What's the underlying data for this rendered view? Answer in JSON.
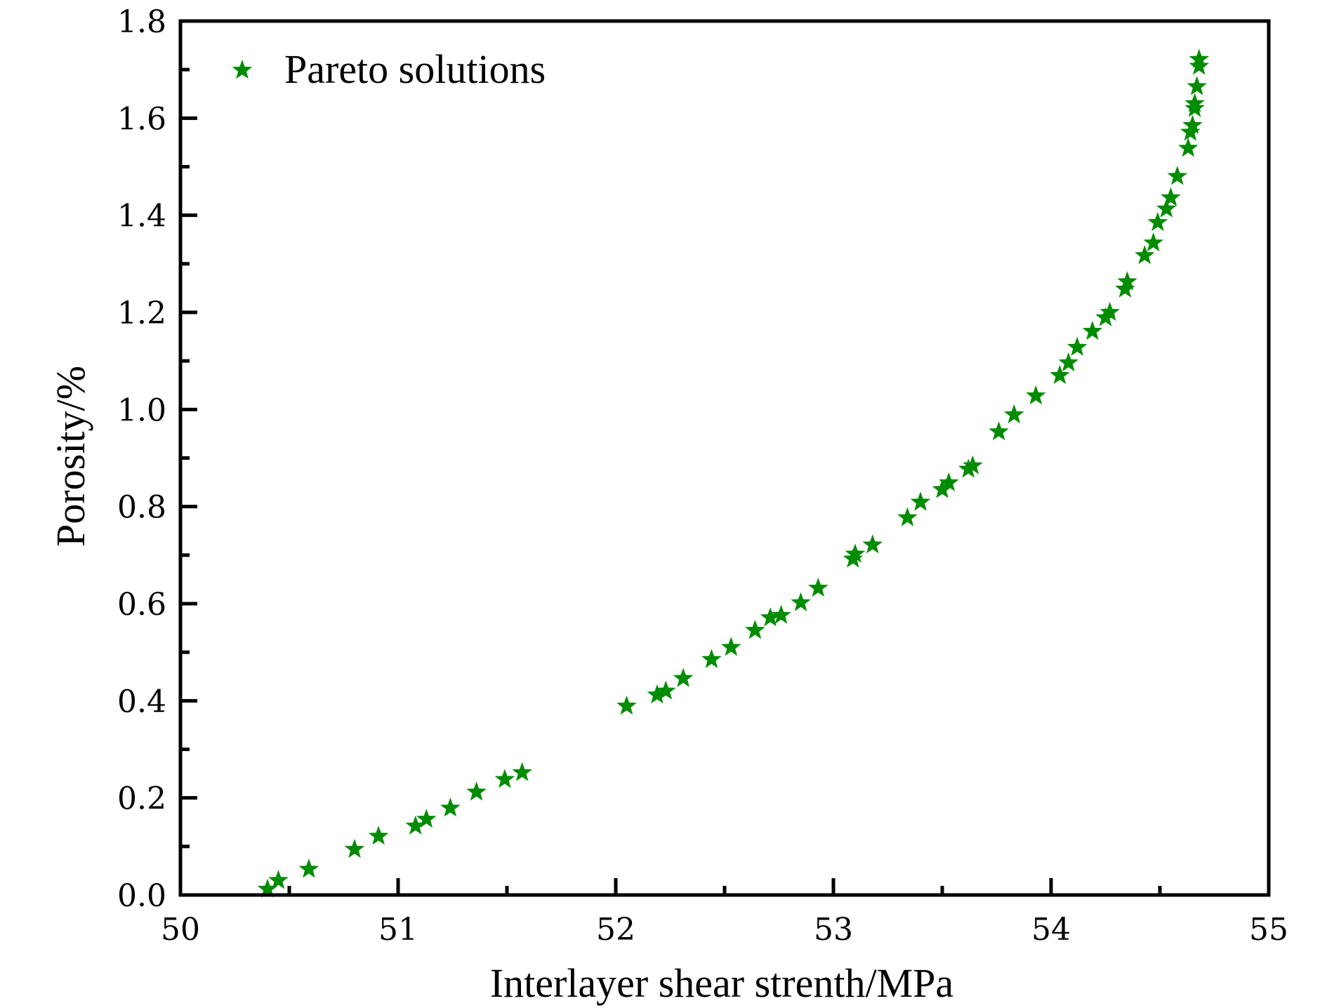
{
  "chart_data": {
    "type": "scatter",
    "title": "",
    "xlabel": "Interlayer shear strenth/MPa",
    "ylabel": "Porosity/%",
    "xlim": [
      50,
      55
    ],
    "ylim": [
      0,
      1.8
    ],
    "x_ticks": [
      "50",
      "51",
      "52",
      "53",
      "54",
      "55"
    ],
    "x_tick_values": [
      50,
      51,
      52,
      53,
      54,
      55
    ],
    "y_ticks": [
      "0.0",
      "0.2",
      "0.4",
      "0.6",
      "0.8",
      "1.0",
      "1.2",
      "1.4",
      "1.6",
      "1.8"
    ],
    "y_tick_values": [
      0,
      0.2,
      0.4,
      0.6,
      0.8,
      1.0,
      1.2,
      1.4,
      1.6,
      1.8
    ],
    "grid": false,
    "legend_position": "top-left",
    "series": [
      {
        "name": "Pareto solutions",
        "marker": "star",
        "color": "#008c00",
        "x": [
          50.4,
          50.45,
          50.59,
          50.8,
          50.91,
          51.08,
          51.13,
          51.24,
          51.36,
          51.49,
          51.57,
          52.05,
          52.19,
          52.23,
          52.31,
          52.44,
          52.53,
          52.64,
          52.71,
          52.76,
          52.85,
          52.93,
          53.09,
          53.1,
          53.18,
          53.34,
          53.4,
          53.5,
          53.53,
          53.62,
          53.64,
          53.76,
          53.83,
          53.93,
          54.04,
          54.08,
          54.12,
          54.19,
          54.25,
          54.27,
          54.34,
          54.35,
          54.43,
          54.47,
          54.49,
          54.53,
          54.55,
          54.58,
          54.63,
          54.64,
          54.65,
          54.66,
          54.66,
          54.67,
          54.68,
          54.68
        ],
        "y": [
          0.012,
          0.03,
          0.053,
          0.094,
          0.121,
          0.142,
          0.156,
          0.179,
          0.212,
          0.238,
          0.252,
          0.389,
          0.412,
          0.42,
          0.446,
          0.485,
          0.51,
          0.545,
          0.571,
          0.576,
          0.602,
          0.632,
          0.692,
          0.702,
          0.721,
          0.777,
          0.809,
          0.835,
          0.849,
          0.877,
          0.884,
          0.954,
          0.989,
          1.028,
          1.07,
          1.096,
          1.128,
          1.161,
          1.189,
          1.2,
          1.248,
          1.263,
          1.317,
          1.343,
          1.385,
          1.413,
          1.436,
          1.48,
          1.538,
          1.571,
          1.585,
          1.62,
          1.63,
          1.665,
          1.707,
          1.721
        ]
      }
    ]
  }
}
